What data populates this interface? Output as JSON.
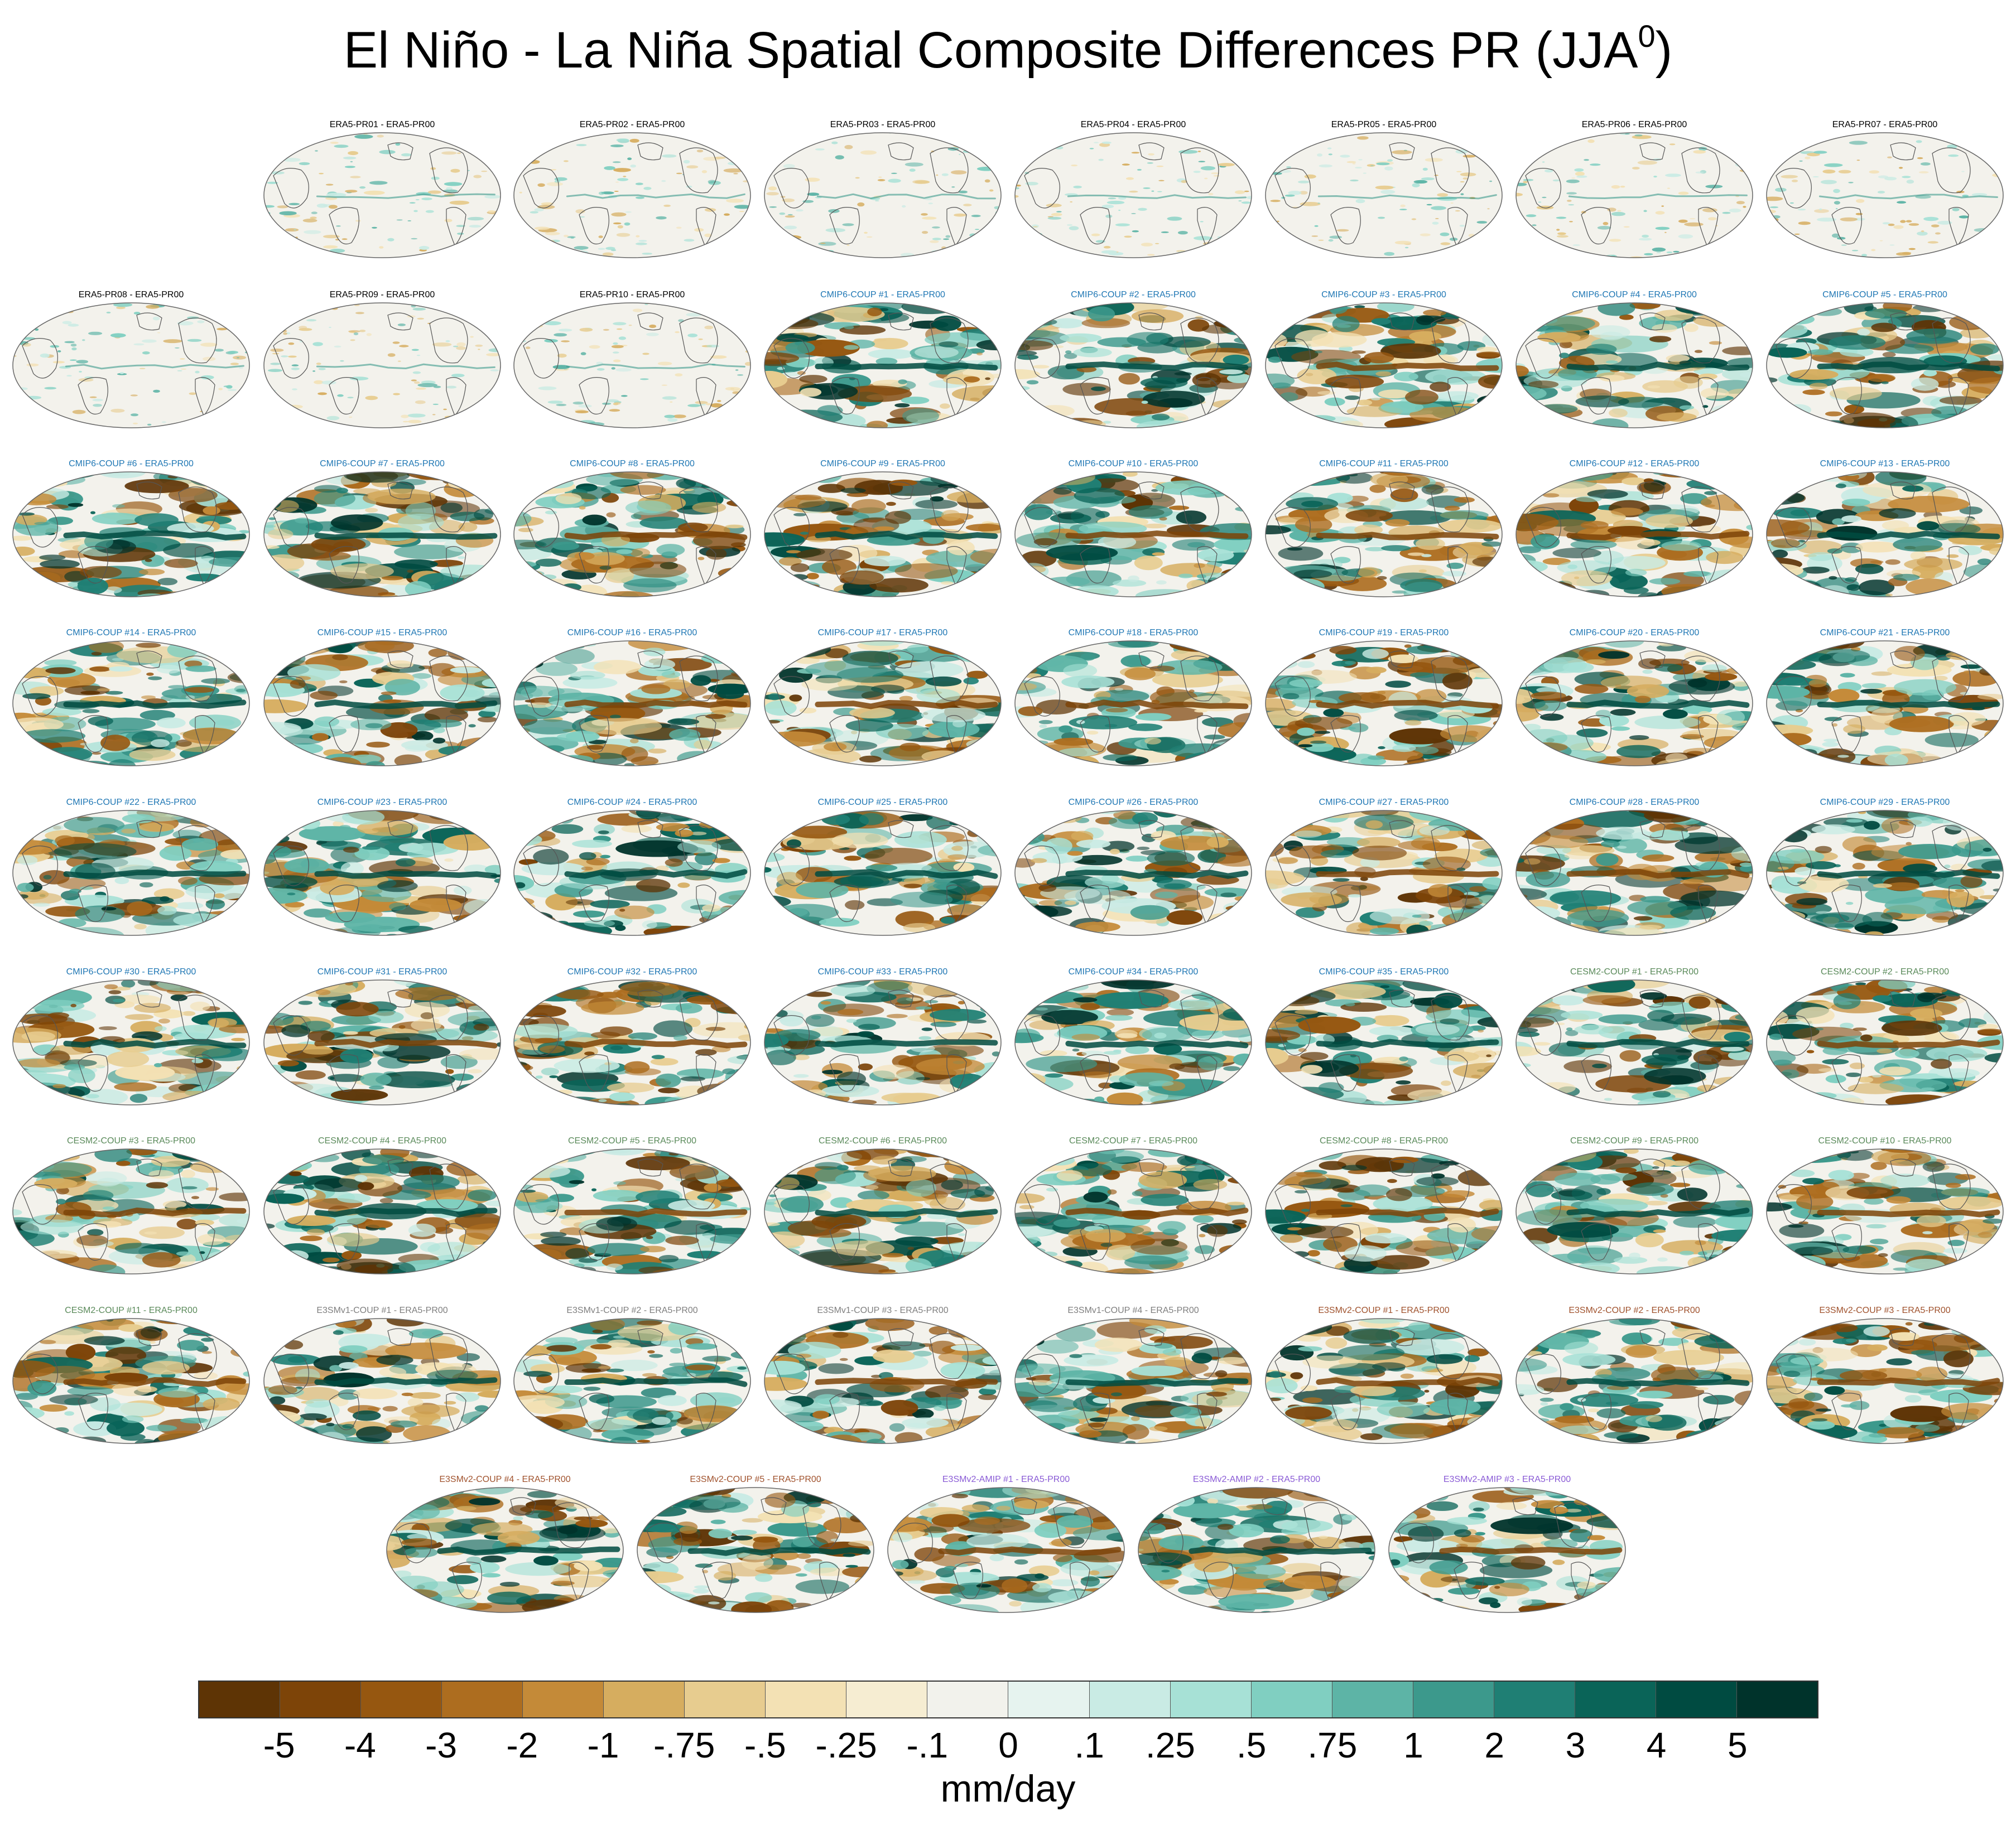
{
  "title": "El Niño - La Niña Spatial Composite Differences PR (JJA",
  "title_superscript": "0",
  "title_close": ")",
  "chart_data": {
    "type": "map-grid",
    "title": "El Niño - La Niña Spatial Composite Differences PR (JJA0)",
    "units": "mm/day",
    "colorbar_levels": [
      "-5",
      "-4",
      "-3",
      "-2",
      "-1",
      "-.75",
      "-.5",
      "-.25",
      "-.1",
      "0",
      ".1",
      ".25",
      ".5",
      ".75",
      "1",
      "2",
      "3",
      "4",
      "5"
    ],
    "colorbar_colors": [
      "#5e3405",
      "#7d4408",
      "#965710",
      "#ad6d1f",
      "#c48a38",
      "#d6ad5f",
      "#e7cc8f",
      "#f3e1b4",
      "#f6edd2",
      "#f2f2ec",
      "#e6f3ef",
      "#c9ebe4",
      "#a7e1d6",
      "#80cfc1",
      "#5db4a6",
      "#3c998c",
      "#1f7f74",
      "#0a6458",
      "#004b41",
      "#00332b"
    ],
    "panel_groups": [
      {
        "group": "ERA5",
        "color": "#000000"
      },
      {
        "group": "CMIP6-COUP",
        "color": "#1f77b4"
      },
      {
        "group": "CESM2-COUP",
        "color": "#5a8a5a"
      },
      {
        "group": "E3SMv1-COUP",
        "color": "#7f7f7f"
      },
      {
        "group": "E3SMv2-COUP",
        "color": "#a0522d"
      },
      {
        "group": "E3SMv2-AMIP",
        "color": "#8a5bd6"
      }
    ],
    "panels": [
      {
        "label": "ERA5-PR01 - ERA5-PR00",
        "group": 0,
        "intensity": 0.35
      },
      {
        "label": "ERA5-PR02 - ERA5-PR00",
        "group": 0,
        "intensity": 0.35
      },
      {
        "label": "ERA5-PR03 - ERA5-PR00",
        "group": 0,
        "intensity": 0.35
      },
      {
        "label": "ERA5-PR04 - ERA5-PR00",
        "group": 0,
        "intensity": 0.35
      },
      {
        "label": "ERA5-PR05 - ERA5-PR00",
        "group": 0,
        "intensity": 0.35
      },
      {
        "label": "ERA5-PR06 - ERA5-PR00",
        "group": 0,
        "intensity": 0.35
      },
      {
        "label": "ERA5-PR07 - ERA5-PR00",
        "group": 0,
        "intensity": 0.35
      },
      {
        "label": "ERA5-PR08 - ERA5-PR00",
        "group": 0,
        "intensity": 0.35
      },
      {
        "label": "ERA5-PR09 - ERA5-PR00",
        "group": 0,
        "intensity": 0.35
      },
      {
        "label": "ERA5-PR10 - ERA5-PR00",
        "group": 0,
        "intensity": 0.35
      },
      {
        "label": "CMIP6-COUP  #1 - ERA5-PR00",
        "group": 1,
        "intensity": 1
      },
      {
        "label": "CMIP6-COUP  #2 - ERA5-PR00",
        "group": 1,
        "intensity": 1
      },
      {
        "label": "CMIP6-COUP  #3 - ERA5-PR00",
        "group": 1,
        "intensity": 1
      },
      {
        "label": "CMIP6-COUP  #4 - ERA5-PR00",
        "group": 1,
        "intensity": 1
      },
      {
        "label": "CMIP6-COUP  #5 - ERA5-PR00",
        "group": 1,
        "intensity": 1
      },
      {
        "label": "CMIP6-COUP  #6 - ERA5-PR00",
        "group": 1,
        "intensity": 1
      },
      {
        "label": "CMIP6-COUP  #7 - ERA5-PR00",
        "group": 1,
        "intensity": 1
      },
      {
        "label": "CMIP6-COUP  #8 - ERA5-PR00",
        "group": 1,
        "intensity": 1
      },
      {
        "label": "CMIP6-COUP  #9 - ERA5-PR00",
        "group": 1,
        "intensity": 1
      },
      {
        "label": "CMIP6-COUP  #10 - ERA5-PR00",
        "group": 1,
        "intensity": 1
      },
      {
        "label": "CMIP6-COUP  #11 - ERA5-PR00",
        "group": 1,
        "intensity": 1
      },
      {
        "label": "CMIP6-COUP  #12 - ERA5-PR00",
        "group": 1,
        "intensity": 1
      },
      {
        "label": "CMIP6-COUP  #13 - ERA5-PR00",
        "group": 1,
        "intensity": 1
      },
      {
        "label": "CMIP6-COUP  #14 - ERA5-PR00",
        "group": 1,
        "intensity": 1
      },
      {
        "label": "CMIP6-COUP  #15 - ERA5-PR00",
        "group": 1,
        "intensity": 1
      },
      {
        "label": "CMIP6-COUP  #16 - ERA5-PR00",
        "group": 1,
        "intensity": 1
      },
      {
        "label": "CMIP6-COUP  #17 - ERA5-PR00",
        "group": 1,
        "intensity": 1
      },
      {
        "label": "CMIP6-COUP  #18 - ERA5-PR00",
        "group": 1,
        "intensity": 1
      },
      {
        "label": "CMIP6-COUP  #19 - ERA5-PR00",
        "group": 1,
        "intensity": 1
      },
      {
        "label": "CMIP6-COUP  #20 - ERA5-PR00",
        "group": 1,
        "intensity": 1
      },
      {
        "label": "CMIP6-COUP  #21 - ERA5-PR00",
        "group": 1,
        "intensity": 1
      },
      {
        "label": "CMIP6-COUP  #22 - ERA5-PR00",
        "group": 1,
        "intensity": 1
      },
      {
        "label": "CMIP6-COUP  #23 - ERA5-PR00",
        "group": 1,
        "intensity": 1
      },
      {
        "label": "CMIP6-COUP  #24 - ERA5-PR00",
        "group": 1,
        "intensity": 1
      },
      {
        "label": "CMIP6-COUP  #25 - ERA5-PR00",
        "group": 1,
        "intensity": 1
      },
      {
        "label": "CMIP6-COUP  #26 - ERA5-PR00",
        "group": 1,
        "intensity": 1
      },
      {
        "label": "CMIP6-COUP  #27 - ERA5-PR00",
        "group": 1,
        "intensity": 1
      },
      {
        "label": "CMIP6-COUP  #28 - ERA5-PR00",
        "group": 1,
        "intensity": 1
      },
      {
        "label": "CMIP6-COUP  #29 - ERA5-PR00",
        "group": 1,
        "intensity": 1
      },
      {
        "label": "CMIP6-COUP  #30 - ERA5-PR00",
        "group": 1,
        "intensity": 1
      },
      {
        "label": "CMIP6-COUP  #31 - ERA5-PR00",
        "group": 1,
        "intensity": 1
      },
      {
        "label": "CMIP6-COUP  #32 - ERA5-PR00",
        "group": 1,
        "intensity": 1
      },
      {
        "label": "CMIP6-COUP  #33 - ERA5-PR00",
        "group": 1,
        "intensity": 1
      },
      {
        "label": "CMIP6-COUP  #34 - ERA5-PR00",
        "group": 1,
        "intensity": 1
      },
      {
        "label": "CMIP6-COUP  #35 - ERA5-PR00",
        "group": 1,
        "intensity": 1
      },
      {
        "label": "CESM2-COUP  #1 - ERA5-PR00",
        "group": 2,
        "intensity": 1
      },
      {
        "label": "CESM2-COUP  #2 - ERA5-PR00",
        "group": 2,
        "intensity": 1
      },
      {
        "label": "CESM2-COUP  #3 - ERA5-PR00",
        "group": 2,
        "intensity": 1
      },
      {
        "label": "CESM2-COUP  #4 - ERA5-PR00",
        "group": 2,
        "intensity": 1
      },
      {
        "label": "CESM2-COUP  #5 - ERA5-PR00",
        "group": 2,
        "intensity": 1
      },
      {
        "label": "CESM2-COUP  #6 - ERA5-PR00",
        "group": 2,
        "intensity": 1
      },
      {
        "label": "CESM2-COUP  #7 - ERA5-PR00",
        "group": 2,
        "intensity": 1
      },
      {
        "label": "CESM2-COUP  #8 - ERA5-PR00",
        "group": 2,
        "intensity": 1
      },
      {
        "label": "CESM2-COUP  #9 - ERA5-PR00",
        "group": 2,
        "intensity": 1
      },
      {
        "label": "CESM2-COUP  #10 - ERA5-PR00",
        "group": 2,
        "intensity": 1
      },
      {
        "label": "CESM2-COUP  #11 - ERA5-PR00",
        "group": 2,
        "intensity": 1
      },
      {
        "label": "E3SMv1-COUP #1 - ERA5-PR00",
        "group": 3,
        "intensity": 1
      },
      {
        "label": "E3SMv1-COUP #2 - ERA5-PR00",
        "group": 3,
        "intensity": 1
      },
      {
        "label": "E3SMv1-COUP #3 - ERA5-PR00",
        "group": 3,
        "intensity": 1
      },
      {
        "label": "E3SMv1-COUP #4 - ERA5-PR00",
        "group": 3,
        "intensity": 1
      },
      {
        "label": "E3SMv2-COUP #1 - ERA5-PR00",
        "group": 4,
        "intensity": 1
      },
      {
        "label": "E3SMv2-COUP #2 - ERA5-PR00",
        "group": 4,
        "intensity": 1
      },
      {
        "label": "E3SMv2-COUP #3 - ERA5-PR00",
        "group": 4,
        "intensity": 1
      },
      {
        "label": "E3SMv2-COUP #4 - ERA5-PR00",
        "group": 4,
        "intensity": 1
      },
      {
        "label": "E3SMv2-COUP #5 - ERA5-PR00",
        "group": 4,
        "intensity": 1
      },
      {
        "label": "E3SMv2-AMIP #1 - ERA5-PR00",
        "group": 5,
        "intensity": 1
      },
      {
        "label": "E3SMv2-AMIP #2 - ERA5-PR00",
        "group": 5,
        "intensity": 1
      },
      {
        "label": "E3SMv2-AMIP #3 - ERA5-PR00",
        "group": 5,
        "intensity": 1
      }
    ]
  }
}
